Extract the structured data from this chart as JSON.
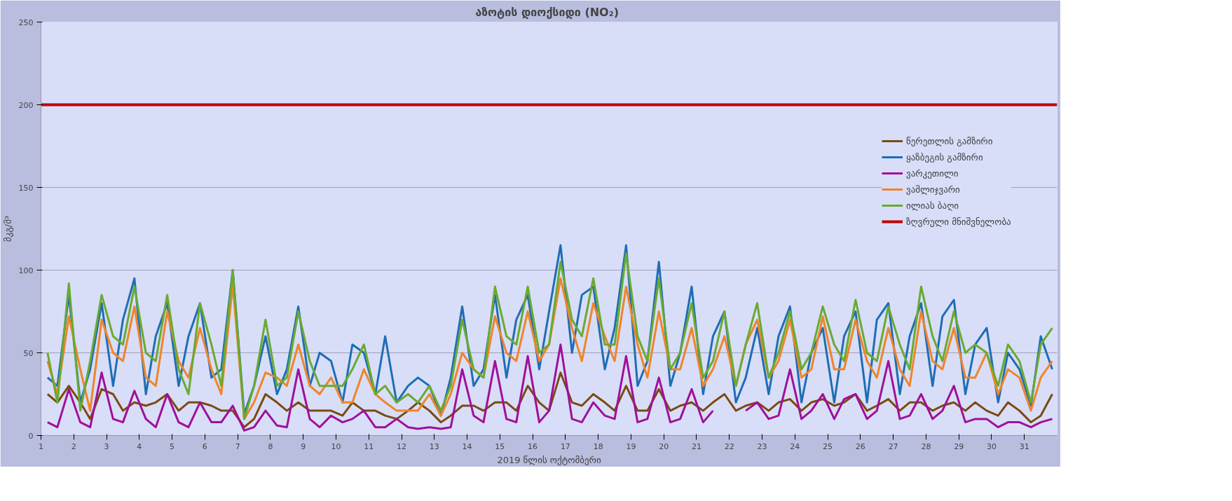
{
  "chart_data": {
    "type": "line",
    "title": "აზოტის  დიოქსიდი (NO₂)",
    "xlabel": "2019 წლის ოქტომბერი",
    "ylabel": "მკგ/მ³",
    "x": [
      1.2,
      1.5,
      1.85,
      2.2,
      2.5,
      2.85,
      3.2,
      3.5,
      3.85,
      4.2,
      4.5,
      4.85,
      5.2,
      5.5,
      5.85,
      6.2,
      6.5,
      6.85,
      7.2,
      7.5,
      7.85,
      8.2,
      8.5,
      8.85,
      9.2,
      9.5,
      9.85,
      10.2,
      10.5,
      10.85,
      11.2,
      11.5,
      11.85,
      12.2,
      12.5,
      12.85,
      13.2,
      13.5,
      13.85,
      14.2,
      14.5,
      14.85,
      15.2,
      15.5,
      15.85,
      16.2,
      16.5,
      16.85,
      17.2,
      17.5,
      17.85,
      18.2,
      18.5,
      18.85,
      19.2,
      19.5,
      19.85,
      20.2,
      20.5,
      20.85,
      21.2,
      21.5,
      21.85,
      22.2,
      22.5,
      22.85,
      23.2,
      23.5,
      23.85,
      24.2,
      24.5,
      24.85,
      25.2,
      25.5,
      25.85,
      26.2,
      26.5,
      26.85,
      27.2,
      27.5,
      27.85,
      28.2,
      28.5,
      28.85,
      29.2,
      29.5,
      29.85,
      30.2,
      30.5,
      30.85,
      31.2,
      31.5,
      31.85
    ],
    "series": [
      {
        "name": "წერეთლის გამზირი",
        "color": "#7b4a12",
        "values": [
          25,
          20,
          30,
          20,
          10,
          28,
          25,
          15,
          20,
          18,
          20,
          25,
          15,
          20,
          20,
          18,
          15,
          15,
          5,
          10,
          25,
          20,
          15,
          20,
          15,
          15,
          15,
          12,
          20,
          15,
          15,
          12,
          10,
          15,
          20,
          15,
          8,
          12,
          18,
          18,
          15,
          20,
          20,
          15,
          30,
          20,
          15,
          38,
          20,
          18,
          25,
          20,
          15,
          30,
          15,
          15,
          28,
          15,
          18,
          20,
          15,
          20,
          25,
          15,
          18,
          20,
          15,
          20,
          22,
          15,
          20,
          22,
          18,
          20,
          25,
          15,
          18,
          22,
          15,
          20,
          20,
          15,
          18,
          20,
          15,
          20,
          15,
          12,
          20,
          15,
          8,
          12,
          25
        ]
      },
      {
        "name": "ყაზბეგის გამზირი",
        "color": "#1f6db5",
        "values": [
          35,
          30,
          85,
          20,
          40,
          80,
          30,
          70,
          95,
          25,
          60,
          80,
          30,
          60,
          80,
          35,
          40,
          100,
          13,
          30,
          60,
          25,
          40,
          78,
          30,
          50,
          45,
          20,
          55,
          50,
          25,
          60,
          20,
          30,
          35,
          30,
          12,
          35,
          78,
          30,
          40,
          85,
          35,
          70,
          85,
          40,
          75,
          115,
          50,
          85,
          90,
          40,
          65,
          115,
          30,
          45,
          105,
          30,
          50,
          90,
          25,
          60,
          75,
          20,
          35,
          65,
          25,
          60,
          78,
          20,
          50,
          65,
          20,
          60,
          75,
          20,
          70,
          80,
          25,
          60,
          80,
          30,
          72,
          82,
          25,
          55,
          65,
          20,
          50,
          40,
          18,
          60,
          40
        ]
      },
      {
        "name": "ვარკეთილი",
        "color": "#a0109a",
        "values": [
          8,
          5,
          28,
          8,
          5,
          38,
          10,
          8,
          27,
          10,
          5,
          25,
          8,
          5,
          20,
          8,
          8,
          18,
          3,
          5,
          15,
          6,
          5,
          40,
          10,
          5,
          12,
          8,
          10,
          15,
          5,
          5,
          10,
          5,
          4,
          5,
          4,
          5,
          40,
          12,
          8,
          45,
          10,
          8,
          48,
          8,
          15,
          55,
          10,
          8,
          20,
          12,
          10,
          48,
          8,
          10,
          35,
          8,
          10,
          28,
          8,
          15,
          null,
          null,
          15,
          20,
          10,
          12,
          40,
          10,
          15,
          25,
          10,
          22,
          25,
          10,
          15,
          45,
          10,
          12,
          25,
          10,
          15,
          30,
          8,
          10,
          10,
          5,
          8,
          8,
          5,
          8,
          10
        ]
      },
      {
        "name": "ვაშლიჯვარი",
        "color": "#f0842a",
        "values": [
          45,
          25,
          72,
          40,
          15,
          70,
          50,
          45,
          78,
          35,
          30,
          75,
          45,
          35,
          65,
          40,
          25,
          91,
          10,
          20,
          38,
          35,
          30,
          55,
          30,
          25,
          35,
          20,
          20,
          40,
          25,
          20,
          15,
          15,
          15,
          25,
          12,
          25,
          50,
          40,
          35,
          72,
          50,
          45,
          75,
          45,
          55,
          95,
          65,
          45,
          80,
          60,
          45,
          90,
          55,
          35,
          75,
          40,
          40,
          65,
          30,
          40,
          60,
          30,
          55,
          70,
          35,
          45,
          70,
          35,
          40,
          72,
          40,
          40,
          70,
          45,
          35,
          65,
          40,
          30,
          75,
          45,
          40,
          65,
          35,
          35,
          50,
          25,
          40,
          35,
          15,
          35,
          45
        ]
      },
      {
        "name": "ილიას ბაღი",
        "color": "#6aaa30",
        "values": [
          50,
          20,
          92,
          15,
          45,
          85,
          60,
          55,
          90,
          50,
          45,
          85,
          40,
          25,
          80,
          55,
          30,
          100,
          10,
          30,
          70,
          30,
          35,
          75,
          45,
          30,
          30,
          30,
          40,
          55,
          25,
          30,
          20,
          25,
          20,
          30,
          15,
          30,
          70,
          40,
          35,
          90,
          60,
          55,
          90,
          50,
          55,
          105,
          70,
          60,
          95,
          55,
          55,
          110,
          60,
          45,
          95,
          40,
          50,
          80,
          35,
          45,
          75,
          30,
          55,
          80,
          35,
          50,
          75,
          40,
          50,
          78,
          55,
          45,
          82,
          50,
          45,
          78,
          55,
          40,
          90,
          60,
          45,
          75,
          50,
          55,
          50,
          30,
          55,
          45,
          20,
          55,
          65
        ]
      }
    ],
    "ref_lines": [
      {
        "axis": "y",
        "value": 200,
        "label": "ზღვრული მნიშვნელობა",
        "color": "#c00000"
      }
    ],
    "xlim": [
      1,
      32
    ],
    "xticks": [
      1,
      2,
      3,
      4,
      5,
      6,
      7,
      8,
      9,
      10,
      11,
      12,
      13,
      14,
      15,
      16,
      17,
      18,
      19,
      20,
      21,
      22,
      23,
      24,
      25,
      26,
      27,
      28,
      29,
      30,
      31
    ],
    "ylim": [
      0,
      250
    ],
    "yticks": [
      0,
      50,
      100,
      150,
      200,
      250
    ],
    "grid": "y",
    "legend": "right",
    "marker": "none",
    "line_style": "solid"
  }
}
